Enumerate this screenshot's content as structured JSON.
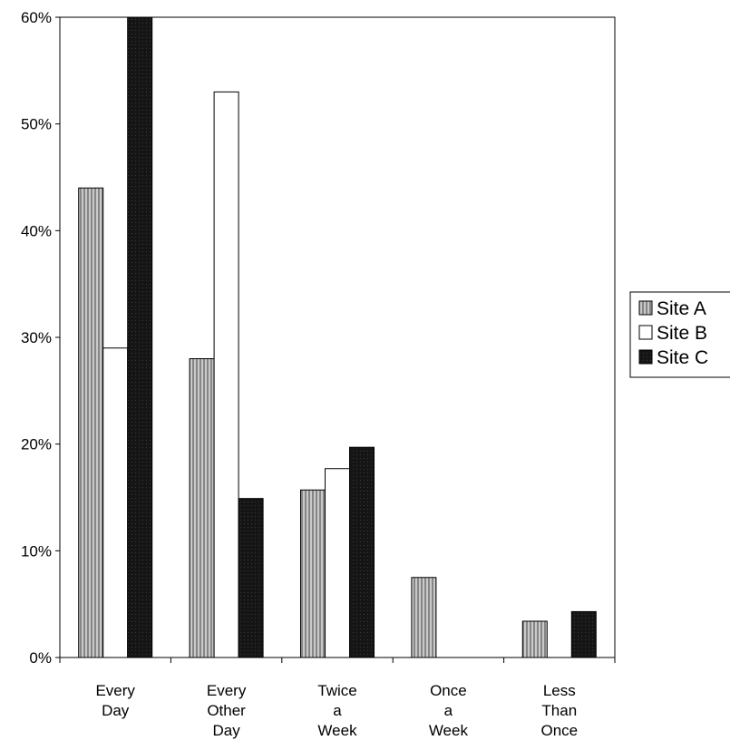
{
  "chart_data": {
    "type": "bar",
    "categories": [
      [
        "Every",
        "Day"
      ],
      [
        "Every",
        "Other",
        "Day"
      ],
      [
        "Twice",
        "a",
        "Week"
      ],
      [
        "Once",
        "a",
        "Week"
      ],
      [
        "Less",
        "Than",
        "Once"
      ]
    ],
    "series": [
      {
        "name": "Site A",
        "values": [
          44,
          28,
          15.7,
          7.5,
          3.4
        ],
        "fill": "hatch"
      },
      {
        "name": "Site B",
        "values": [
          29,
          53,
          17.7,
          0,
          0
        ],
        "fill": "#ffffff"
      },
      {
        "name": "Site C",
        "values": [
          60,
          14.9,
          19.7,
          0,
          4.3
        ],
        "fill": "#1a1a1a"
      }
    ],
    "yticks": [
      "0%",
      "10%",
      "20%",
      "30%",
      "40%",
      "50%",
      "60%"
    ],
    "ylim": [
      0,
      60
    ],
    "legend_position": "right",
    "grid": false
  }
}
